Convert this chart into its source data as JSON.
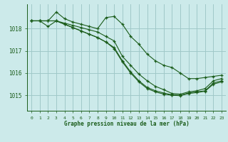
{
  "bg_color": "#cceaea",
  "grid_color": "#a0c8c8",
  "line_color": "#1a5c1a",
  "xlabel": "Graphe pression niveau de la mer (hPa)",
  "xlabel_color": "#1a5c1a",
  "tick_color": "#1a5c1a",
  "ylim": [
    1014.3,
    1019.1
  ],
  "xlim": [
    -0.5,
    23.5
  ],
  "yticks": [
    1015,
    1016,
    1017,
    1018
  ],
  "xticks": [
    0,
    1,
    2,
    3,
    4,
    5,
    6,
    7,
    8,
    9,
    10,
    11,
    12,
    13,
    14,
    15,
    16,
    17,
    18,
    19,
    20,
    21,
    22,
    23
  ],
  "series": [
    [
      1018.35,
      1018.35,
      1018.35,
      1018.75,
      1018.45,
      1018.3,
      1018.2,
      1018.1,
      1018.0,
      1018.5,
      1018.55,
      1018.2,
      1017.65,
      1017.3,
      1016.85,
      1016.55,
      1016.35,
      1016.25,
      1016.0,
      1015.75,
      1015.75,
      1015.8,
      1015.85,
      1015.9
    ],
    [
      1018.35,
      1018.35,
      1018.35,
      1018.35,
      1018.2,
      1018.05,
      1017.9,
      1017.75,
      1017.6,
      1017.4,
      1017.15,
      1016.55,
      1016.05,
      1015.65,
      1015.35,
      1015.2,
      1015.1,
      1015.02,
      1015.0,
      1015.1,
      1015.15,
      1015.2,
      1015.55,
      1015.65
    ],
    [
      1018.35,
      1018.35,
      1018.35,
      1018.35,
      1018.2,
      1018.05,
      1017.9,
      1017.75,
      1017.6,
      1017.4,
      1017.1,
      1016.5,
      1016.0,
      1015.6,
      1015.3,
      1015.15,
      1015.05,
      1015.0,
      1014.98,
      1015.08,
      1015.12,
      1015.18,
      1015.5,
      1015.6
    ],
    [
      1018.35,
      1018.35,
      1018.1,
      1018.35,
      1018.25,
      1018.15,
      1018.05,
      1017.95,
      1017.85,
      1017.65,
      1017.45,
      1016.75,
      1016.35,
      1015.95,
      1015.65,
      1015.4,
      1015.25,
      1015.08,
      1015.05,
      1015.15,
      1015.2,
      1015.3,
      1015.65,
      1015.75
    ]
  ]
}
